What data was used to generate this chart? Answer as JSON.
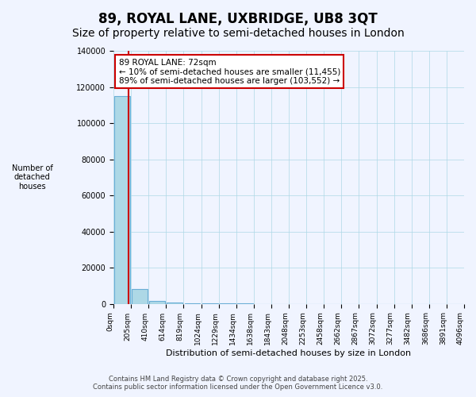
{
  "title": "89, ROYAL LANE, UXBRIDGE, UB8 3QT",
  "subtitle": "Size of property relative to semi-detached houses in London",
  "xlabel": "Distribution of semi-detached houses by size in London",
  "ylabel": "Number of\ndetached\nhouses",
  "bar_values": [
    115007,
    8200,
    1800,
    700,
    350,
    180,
    100,
    60,
    35,
    20,
    12,
    8,
    5,
    3,
    2,
    1,
    1,
    1,
    0,
    0
  ],
  "bar_color": "#add8e6",
  "bar_edge_color": "#6baed6",
  "x_labels": [
    "0sqm",
    "205sqm",
    "410sqm",
    "614sqm",
    "819sqm",
    "1024sqm",
    "1229sqm",
    "1434sqm",
    "1638sqm",
    "1843sqm",
    "2048sqm",
    "2253sqm",
    "2458sqm",
    "2662sqm",
    "2867sqm",
    "3072sqm",
    "3277sqm",
    "3482sqm",
    "3686sqm",
    "3891sqm",
    "4096sqm"
  ],
  "ylim": [
    0,
    140000
  ],
  "yticks": [
    0,
    20000,
    40000,
    60000,
    80000,
    100000,
    120000,
    140000
  ],
  "annotation_box_text": "89 ROYAL LANE: 72sqm\n← 10% of semi-detached houses are smaller (11,455)\n89% of semi-detached houses are larger (103,552) →",
  "red_line_x": 0.35,
  "annotation_color": "#cc0000",
  "background_color": "#f0f4ff",
  "footer_line1": "Contains HM Land Registry data © Crown copyright and database right 2025.",
  "footer_line2": "Contains public sector information licensed under the Open Government Licence v3.0.",
  "title_fontsize": 12,
  "subtitle_fontsize": 10
}
